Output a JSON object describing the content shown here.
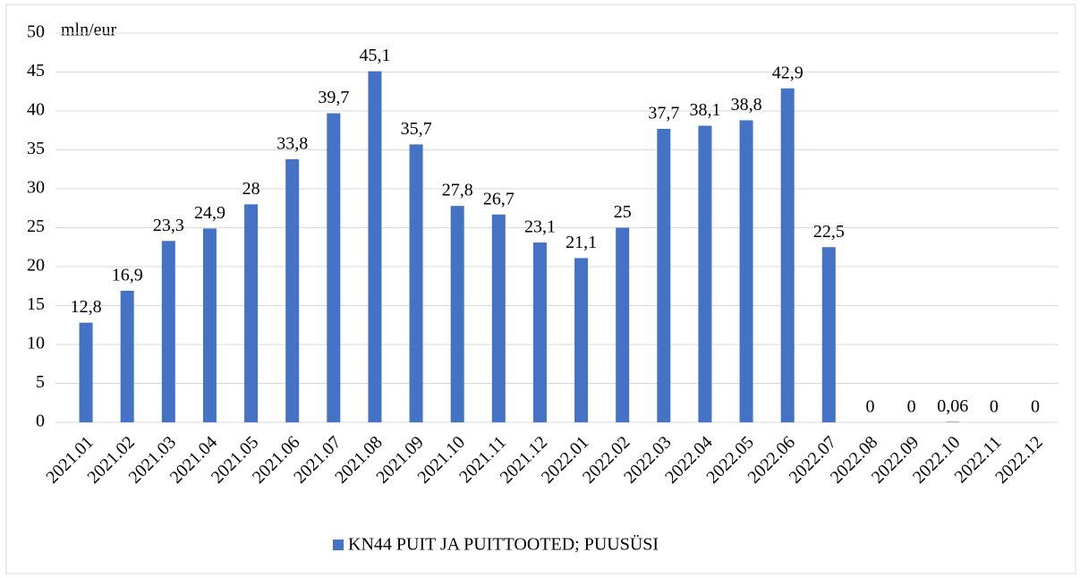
{
  "chart_data": {
    "type": "bar",
    "y_label": "mln/eur",
    "categories": [
      "2021.01",
      "2021.02",
      "2021.03",
      "2021.04",
      "2021.05",
      "2021.06",
      "2021.07",
      "2021.08",
      "2021.09",
      "2021.10",
      "2021.11",
      "2021.12",
      "2022.01",
      "2022.02",
      "2022.03",
      "2022.04",
      "2022.05",
      "2022.06",
      "2022.07",
      "2022.08",
      "2022.09",
      "2022.10",
      "2022.11",
      "2022.12"
    ],
    "series": [
      {
        "name": "KN44 PUIT JA PUITTOOTED; PUUSÜSI",
        "color": "#4472c4",
        "values": [
          12.8,
          16.9,
          23.3,
          24.9,
          28,
          33.8,
          39.7,
          45.1,
          35.7,
          27.8,
          26.7,
          23.1,
          21.1,
          25,
          37.7,
          38.1,
          38.8,
          42.9,
          22.5,
          0,
          0,
          0.06,
          0,
          0
        ],
        "value_labels": [
          "12,8",
          "16,9",
          "23,3",
          "24,9",
          "28",
          "33,8",
          "39,7",
          "45,1",
          "35,7",
          "27,8",
          "26,7",
          "23,1",
          "21,1",
          "25",
          "37,7",
          "38,1",
          "38,8",
          "42,9",
          "22,5",
          "0",
          "0",
          "0,06",
          "0",
          "0"
        ]
      }
    ],
    "ylim": [
      0,
      50
    ],
    "yticks": [
      0,
      5,
      10,
      15,
      20,
      25,
      30,
      35,
      40,
      45,
      50
    ],
    "grid": true,
    "legend": "bottom"
  }
}
